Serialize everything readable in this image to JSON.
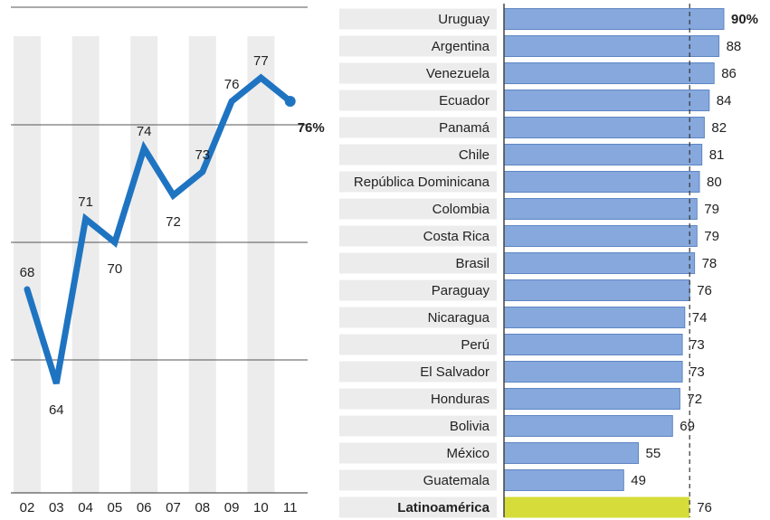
{
  "chart_data": [
    {
      "type": "line",
      "categories": [
        "02",
        "03",
        "04",
        "05",
        "06",
        "07",
        "08",
        "09",
        "10",
        "11"
      ],
      "values": [
        68,
        64,
        71,
        70,
        74,
        72,
        73,
        76,
        77,
        76
      ],
      "value_labels": [
        "68",
        "64",
        "71",
        "70",
        "74",
        "72",
        "73",
        "76",
        "77",
        "76%"
      ],
      "ylim": [
        62,
        80
      ],
      "grid_values": [
        65,
        70,
        75,
        80
      ],
      "color": "#1f74c2",
      "band_color": "#ececec",
      "grid": true
    },
    {
      "type": "bar",
      "orientation": "horizontal",
      "categories": [
        "Uruguay",
        "Argentina",
        "Venezuela",
        "Ecuador",
        "Panamá",
        "Chile",
        "República Dominicana",
        "Colombia",
        "Costa Rica",
        "Brasil",
        "Paraguay",
        "Nicaragua",
        "Perú",
        "El Salvador",
        "Honduras",
        "Bolivia",
        "México",
        "Guatemala",
        "Latinoamérica"
      ],
      "values": [
        90,
        88,
        86,
        84,
        82,
        81,
        80,
        79,
        79,
        78,
        76,
        74,
        73,
        73,
        72,
        69,
        55,
        49,
        76
      ],
      "value_labels": [
        "90%",
        "88",
        "86",
        "84",
        "82",
        "81",
        "80",
        "79",
        "79",
        "78",
        "76",
        "74",
        "73",
        "73",
        "72",
        "69",
        "55",
        "49",
        "76"
      ],
      "xlim": [
        0,
        92
      ],
      "reference_line": 76,
      "colors": {
        "bar": "#86a8dc",
        "bar_edge": "#5f86c4",
        "highlight": "#d6dc3a",
        "row_band": "#ececec"
      },
      "highlight_index": 18
    }
  ]
}
